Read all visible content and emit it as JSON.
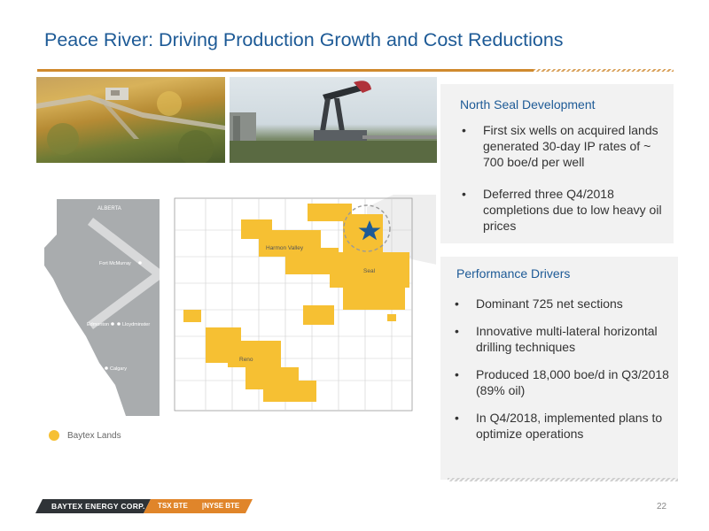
{
  "slide": {
    "title": "Peace River: Driving Production Growth and Cost Reductions",
    "page_number": "22"
  },
  "north_seal": {
    "title": "North Seal Development",
    "bullets": [
      "First six wells on acquired lands generated 30-day IP rates of ~ 700 boe/d per well",
      "Deferred three Q4/2018 completions due to low heavy oil prices"
    ]
  },
  "performance": {
    "title": "Performance Drivers",
    "bullets": [
      "Dominant 725 net sections",
      "Innovative multi-lateral horizontal drilling techniques",
      "Produced 18,000 boe/d in Q3/2018  (89% oil)",
      "In Q4/2018, implemented plans to optimize operations"
    ]
  },
  "bullet_glyph": "•",
  "province_map": {
    "province": "ALBERTA",
    "cities": [
      "Fort McMurray",
      "Edmonton",
      "Lloydminster",
      "Calgary"
    ]
  },
  "land_map": {
    "areas": [
      "Harmon Valley",
      "Seal",
      "Reno"
    ],
    "highlight_icon": "star-icon"
  },
  "legend": {
    "label": "Baytex Lands",
    "color": "#f6c033"
  },
  "footer": {
    "company": "BAYTEX ENERGY CORP.",
    "tsx": "TSX BTE",
    "nyse": "NYSE BTE"
  },
  "colors": {
    "title_blue": "#1d5a96",
    "accent_orange": "#d08a2e",
    "land_yellow": "#f6c033"
  }
}
